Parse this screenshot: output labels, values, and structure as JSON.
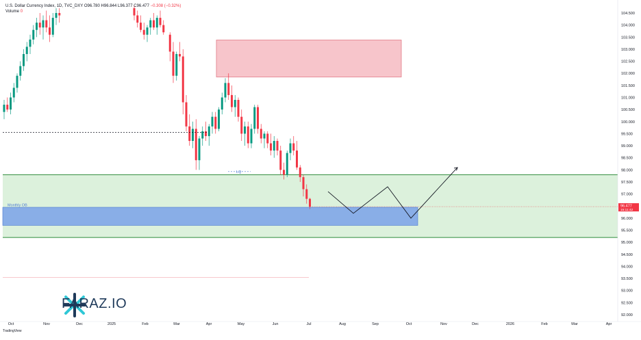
{
  "header": {
    "symbol": "U.S. Dollar Currency Index, 1D, TVC_DXY",
    "open": "O96.780",
    "high": "H96.844",
    "low": "L96.377",
    "close": "C96.477",
    "change": "−0.308 (−0.32%)",
    "volume_label": "Volume",
    "volume_value": "0"
  },
  "price_tag": {
    "price": "96.477",
    "countdown": "15:11:42"
  },
  "zones": {
    "monthly_ob_label": "Monthly OB",
    "lq_label": "LQ",
    "supply_zone_color": "#f7c5cb",
    "demand_zone_color": "#d6eed6",
    "ob_color": "#7fa6e8"
  },
  "brand": {
    "name": "FARAZ.IO",
    "footer": "TradingView"
  },
  "chart_data": {
    "type": "candlestick",
    "title": "U.S. Dollar Currency Index, 1D, TVC_DXY",
    "y_ticks": [
      "104.500",
      "104.000",
      "103.500",
      "103.000",
      "102.500",
      "102.000",
      "101.500",
      "101.000",
      "100.500",
      "100.000",
      "99.500",
      "99.000",
      "98.500",
      "98.000",
      "97.500",
      "97.000",
      "96.500",
      "96.000",
      "95.500",
      "95.000",
      "94.500",
      "94.000",
      "93.500",
      "93.000",
      "92.500",
      "92.000"
    ],
    "ylim": [
      92.0,
      104.7
    ],
    "x_ticks": [
      "Oct",
      "Nov",
      "Dec",
      "2025",
      "Feb",
      "Mar",
      "Apr",
      "May",
      "Jun",
      "Jul",
      "Aug",
      "Sep",
      "Oct",
      "Nov",
      "Dec",
      "2026",
      "Feb",
      "Mar",
      "Apr"
    ],
    "last_price": 96.477,
    "candles": [
      [
        0,
        100.4,
        100.9,
        100.1,
        100.7
      ],
      [
        1,
        100.7,
        101.0,
        100.4,
        100.5
      ],
      [
        2,
        100.5,
        101.2,
        100.3,
        101.0
      ],
      [
        3,
        101.0,
        101.6,
        100.8,
        101.4
      ],
      [
        4,
        101.4,
        102.0,
        101.2,
        101.9
      ],
      [
        5,
        101.9,
        102.5,
        101.7,
        102.3
      ],
      [
        6,
        102.3,
        103.0,
        102.1,
        102.8
      ],
      [
        7,
        102.8,
        103.3,
        102.5,
        103.1
      ],
      [
        8,
        103.1,
        103.6,
        102.8,
        103.4
      ],
      [
        9,
        103.4,
        104.0,
        103.2,
        103.8
      ],
      [
        10,
        103.8,
        104.3,
        103.5,
        104.1
      ],
      [
        11,
        104.1,
        104.5,
        103.6,
        103.9
      ],
      [
        12,
        103.9,
        104.4,
        103.4,
        104.2
      ],
      [
        13,
        104.2,
        104.6,
        103.7,
        103.9
      ],
      [
        14,
        103.9,
        104.4,
        103.3,
        103.6
      ],
      [
        15,
        103.6,
        104.5,
        103.5,
        104.3
      ],
      [
        16,
        104.3,
        104.7,
        104.0,
        104.5
      ],
      [
        17,
        104.5,
        104.7,
        104.1,
        104.4
      ],
      [
        40,
        104.7,
        104.8,
        104.2,
        104.4
      ],
      [
        41,
        104.4,
        104.6,
        103.9,
        104.1
      ],
      [
        42,
        104.1,
        104.4,
        103.7,
        103.8
      ],
      [
        43,
        103.8,
        104.1,
        103.4,
        103.6
      ],
      [
        44,
        103.6,
        104.0,
        103.3,
        103.9
      ],
      [
        45,
        103.9,
        104.3,
        103.6,
        104.2
      ],
      [
        46,
        104.2,
        104.5,
        103.8,
        103.9
      ],
      [
        47,
        103.9,
        104.4,
        103.6,
        104.3
      ],
      [
        48,
        104.3,
        104.6,
        103.9,
        104.0
      ],
      [
        49,
        104.0,
        104.2,
        103.6,
        103.7
      ],
      [
        51,
        103.6,
        103.7,
        102.5,
        102.9
      ],
      [
        52,
        102.9,
        103.3,
        101.6,
        101.9
      ],
      [
        53,
        101.9,
        102.9,
        101.7,
        102.8
      ],
      [
        54,
        102.8,
        103.3,
        102.5,
        102.7
      ],
      [
        55,
        102.7,
        103.0,
        100.3,
        100.8
      ],
      [
        56,
        100.8,
        101.1,
        99.6,
        99.8
      ],
      [
        57,
        99.8,
        100.3,
        99.0,
        99.2
      ],
      [
        58,
        99.2,
        100.0,
        98.9,
        99.7
      ],
      [
        59,
        99.7,
        100.1,
        98.0,
        98.4
      ],
      [
        60,
        98.4,
        99.4,
        98.0,
        99.3
      ],
      [
        61,
        99.3,
        99.8,
        99.0,
        99.6
      ],
      [
        62,
        99.6,
        100.0,
        99.2,
        99.4
      ],
      [
        63,
        99.4,
        99.9,
        99.0,
        99.8
      ],
      [
        64,
        99.8,
        100.4,
        99.5,
        100.2
      ],
      [
        65,
        100.2,
        100.4,
        99.5,
        99.7
      ],
      [
        66,
        99.7,
        100.6,
        99.6,
        100.5
      ],
      [
        67,
        100.5,
        101.2,
        100.3,
        101.0
      ],
      [
        68,
        101.0,
        101.8,
        100.8,
        101.6
      ],
      [
        69,
        101.6,
        102.0,
        100.9,
        101.1
      ],
      [
        70,
        101.1,
        101.5,
        100.4,
        100.6
      ],
      [
        71,
        100.6,
        101.1,
        100.2,
        100.9
      ],
      [
        72,
        100.9,
        101.0,
        100.0,
        100.2
      ],
      [
        73,
        100.2,
        100.5,
        99.2,
        99.5
      ],
      [
        74,
        99.5,
        100.0,
        99.0,
        99.8
      ],
      [
        75,
        99.8,
        100.0,
        98.9,
        99.1
      ],
      [
        76,
        99.1,
        99.9,
        98.9,
        99.7
      ],
      [
        77,
        99.7,
        100.7,
        99.5,
        100.6
      ],
      [
        78,
        100.6,
        100.7,
        99.5,
        99.7
      ],
      [
        79,
        99.7,
        99.9,
        99.1,
        99.3
      ],
      [
        80,
        99.3,
        99.6,
        98.9,
        99.5
      ],
      [
        81,
        99.5,
        99.6,
        98.9,
        99.1
      ],
      [
        82,
        99.1,
        99.5,
        98.6,
        98.8
      ],
      [
        83,
        98.8,
        99.4,
        98.5,
        99.2
      ],
      [
        84,
        99.2,
        99.3,
        98.6,
        98.8
      ],
      [
        85,
        98.8,
        99.0,
        97.8,
        98.0
      ],
      [
        86,
        98.0,
        98.3,
        97.6,
        97.8
      ],
      [
        87,
        97.8,
        98.8,
        97.7,
        98.7
      ],
      [
        88,
        98.7,
        99.3,
        98.4,
        99.1
      ],
      [
        89,
        99.1,
        99.4,
        98.6,
        98.8
      ],
      [
        90,
        98.8,
        99.2,
        98.0,
        98.1
      ],
      [
        91,
        98.1,
        98.2,
        97.5,
        97.7
      ],
      [
        92,
        97.7,
        97.8,
        96.9,
        97.2
      ],
      [
        93,
        97.2,
        97.4,
        96.6,
        96.8
      ],
      [
        94,
        96.8,
        96.84,
        96.377,
        96.477
      ]
    ],
    "zones": [
      {
        "name": "supply",
        "y_top": 103.38,
        "y_bottom": 101.85
      },
      {
        "name": "demand",
        "y_top": 97.8,
        "y_bottom": 95.2
      },
      {
        "name": "Monthly OB",
        "y_top": 96.45,
        "y_bottom": 95.7
      }
    ],
    "projection": [
      {
        "x": "Jul",
        "y": 97.1
      },
      {
        "x": "Aug",
        "y": 96.2
      },
      {
        "x": "Sep",
        "y": 97.3
      },
      {
        "x": "Oct",
        "y": 96.0
      },
      {
        "x": "Nov",
        "y": 98.1
      }
    ]
  }
}
